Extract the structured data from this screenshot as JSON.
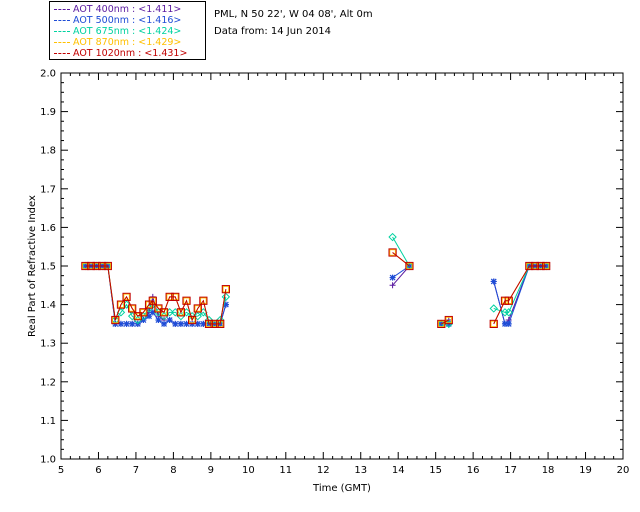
{
  "header": {
    "site": "PML, N 50 22', W 04 08', Alt 0m",
    "date_line": "Data from: 14 Jun 2014"
  },
  "legend": [
    {
      "label": "AOT  400nm : <1.411>",
      "color": "#5a1aa0"
    },
    {
      "label": "AOT  500nm : <1.416>",
      "color": "#1e4cd6"
    },
    {
      "label": "AOT  675nm : <1.424>",
      "color": "#00d2a0"
    },
    {
      "label": "AOT  870nm : <1.429>",
      "color": "#ffc000"
    },
    {
      "label": "AOT 1020nm : <1.431>",
      "color": "#c00000"
    }
  ],
  "chart_data": {
    "type": "scatter",
    "title": "",
    "xlabel": "Time (GMT)",
    "ylabel": "Real Part of Refractive Index",
    "xlim": [
      5,
      20
    ],
    "ylim": [
      1.0,
      2.0
    ],
    "xticks": [
      5,
      6,
      7,
      8,
      9,
      10,
      11,
      12,
      13,
      14,
      15,
      16,
      17,
      18,
      19,
      20
    ],
    "yticks": [
      1.0,
      1.1,
      1.2,
      1.3,
      1.4,
      1.5,
      1.6,
      1.7,
      1.8,
      1.9,
      2.0
    ],
    "series": [
      {
        "name": "AOT  400nm : <1.411>",
        "color": "#5a1aa0",
        "marker": "plus",
        "points": [
          [
            5.65,
            1.5
          ],
          [
            5.8,
            1.5
          ],
          [
            5.95,
            1.5
          ],
          [
            6.1,
            1.5
          ],
          [
            6.25,
            1.5
          ],
          [
            6.45,
            1.35
          ],
          [
            6.6,
            1.35
          ],
          [
            6.75,
            1.35
          ],
          [
            6.9,
            1.35
          ],
          [
            7.05,
            1.35
          ],
          [
            7.2,
            1.36
          ],
          [
            7.35,
            1.38
          ],
          [
            7.45,
            1.42
          ],
          [
            7.6,
            1.37
          ],
          [
            7.75,
            1.36
          ],
          [
            7.9,
            1.36
          ],
          [
            8.05,
            1.35
          ],
          [
            8.2,
            1.35
          ],
          [
            8.35,
            1.35
          ],
          [
            8.5,
            1.35
          ],
          [
            8.65,
            1.35
          ],
          [
            8.8,
            1.35
          ],
          [
            8.95,
            1.35
          ],
          [
            9.1,
            1.35
          ],
          [
            9.25,
            1.35
          ],
          [
            9.4,
            1.4
          ],
          [
            13.85,
            1.45
          ],
          [
            14.3,
            1.5
          ],
          [
            15.15,
            1.35
          ],
          [
            15.35,
            1.36
          ],
          [
            16.55,
            1.46
          ],
          [
            16.85,
            1.35
          ],
          [
            16.95,
            1.36
          ],
          [
            17.5,
            1.5
          ],
          [
            17.65,
            1.5
          ],
          [
            17.8,
            1.5
          ],
          [
            17.95,
            1.5
          ]
        ]
      },
      {
        "name": "AOT  500nm : <1.416>",
        "color": "#1e4cd6",
        "marker": "star",
        "points": [
          [
            5.65,
            1.5
          ],
          [
            5.8,
            1.5
          ],
          [
            5.95,
            1.5
          ],
          [
            6.1,
            1.5
          ],
          [
            6.25,
            1.5
          ],
          [
            6.45,
            1.35
          ],
          [
            6.6,
            1.35
          ],
          [
            6.75,
            1.35
          ],
          [
            6.9,
            1.35
          ],
          [
            7.05,
            1.35
          ],
          [
            7.2,
            1.36
          ],
          [
            7.35,
            1.37
          ],
          [
            7.45,
            1.38
          ],
          [
            7.6,
            1.36
          ],
          [
            7.75,
            1.35
          ],
          [
            7.9,
            1.36
          ],
          [
            8.05,
            1.35
          ],
          [
            8.2,
            1.35
          ],
          [
            8.35,
            1.35
          ],
          [
            8.5,
            1.35
          ],
          [
            8.65,
            1.35
          ],
          [
            8.8,
            1.35
          ],
          [
            8.95,
            1.35
          ],
          [
            9.1,
            1.35
          ],
          [
            9.25,
            1.35
          ],
          [
            9.4,
            1.4
          ],
          [
            13.85,
            1.47
          ],
          [
            14.3,
            1.5
          ],
          [
            15.15,
            1.35
          ],
          [
            15.35,
            1.35
          ],
          [
            16.55,
            1.46
          ],
          [
            16.85,
            1.35
          ],
          [
            16.95,
            1.35
          ],
          [
            17.5,
            1.5
          ],
          [
            17.65,
            1.5
          ],
          [
            17.8,
            1.5
          ],
          [
            17.95,
            1.5
          ]
        ]
      },
      {
        "name": "AOT  675nm : <1.424>",
        "color": "#00d2a0",
        "marker": "diamond",
        "points": [
          [
            5.65,
            1.5
          ],
          [
            5.8,
            1.5
          ],
          [
            5.95,
            1.5
          ],
          [
            6.1,
            1.5
          ],
          [
            6.25,
            1.5
          ],
          [
            6.45,
            1.36
          ],
          [
            6.6,
            1.38
          ],
          [
            6.75,
            1.4
          ],
          [
            6.9,
            1.37
          ],
          [
            7.05,
            1.36
          ],
          [
            7.2,
            1.37
          ],
          [
            7.35,
            1.39
          ],
          [
            7.45,
            1.4
          ],
          [
            7.6,
            1.38
          ],
          [
            7.75,
            1.37
          ],
          [
            7.9,
            1.38
          ],
          [
            8.05,
            1.38
          ],
          [
            8.2,
            1.37
          ],
          [
            8.35,
            1.38
          ],
          [
            8.5,
            1.37
          ],
          [
            8.65,
            1.37
          ],
          [
            8.8,
            1.38
          ],
          [
            8.95,
            1.36
          ],
          [
            9.1,
            1.35
          ],
          [
            9.25,
            1.36
          ],
          [
            9.4,
            1.42
          ],
          [
            13.85,
            1.575
          ],
          [
            14.3,
            1.5
          ],
          [
            15.15,
            1.35
          ],
          [
            15.35,
            1.35
          ],
          [
            16.55,
            1.39
          ],
          [
            16.85,
            1.38
          ],
          [
            16.95,
            1.38
          ],
          [
            17.5,
            1.5
          ],
          [
            17.65,
            1.5
          ],
          [
            17.8,
            1.5
          ],
          [
            17.95,
            1.5
          ]
        ]
      },
      {
        "name": "AOT  870nm : <1.429>",
        "color": "#ffc000",
        "marker": "square",
        "points": [
          [
            5.65,
            1.5
          ],
          [
            5.8,
            1.5
          ],
          [
            5.95,
            1.5
          ],
          [
            6.1,
            1.5
          ],
          [
            6.25,
            1.5
          ],
          [
            6.45,
            1.36
          ],
          [
            6.6,
            1.4
          ],
          [
            6.75,
            1.42
          ],
          [
            6.9,
            1.39
          ],
          [
            7.05,
            1.37
          ],
          [
            7.2,
            1.38
          ],
          [
            7.35,
            1.4
          ],
          [
            7.45,
            1.41
          ],
          [
            7.6,
            1.39
          ],
          [
            7.75,
            1.38
          ],
          [
            7.9,
            1.42
          ],
          [
            8.05,
            1.42
          ],
          [
            8.2,
            1.38
          ],
          [
            8.35,
            1.41
          ],
          [
            8.5,
            1.36
          ],
          [
            8.65,
            1.39
          ],
          [
            8.8,
            1.41
          ],
          [
            8.95,
            1.35
          ],
          [
            9.1,
            1.35
          ],
          [
            9.25,
            1.35
          ],
          [
            9.4,
            1.44
          ],
          [
            13.85,
            1.535
          ],
          [
            14.3,
            1.5
          ],
          [
            15.15,
            1.35
          ],
          [
            15.35,
            1.36
          ],
          [
            16.55,
            1.35
          ],
          [
            16.85,
            1.41
          ],
          [
            16.95,
            1.41
          ],
          [
            17.5,
            1.5
          ],
          [
            17.65,
            1.5
          ],
          [
            17.8,
            1.5
          ],
          [
            17.95,
            1.5
          ]
        ]
      },
      {
        "name": "AOT 1020nm : <1.431>",
        "color": "#c00000",
        "marker": "square",
        "points": [
          [
            5.65,
            1.5
          ],
          [
            5.8,
            1.5
          ],
          [
            5.95,
            1.5
          ],
          [
            6.1,
            1.5
          ],
          [
            6.25,
            1.5
          ],
          [
            6.45,
            1.36
          ],
          [
            6.6,
            1.4
          ],
          [
            6.75,
            1.42
          ],
          [
            6.9,
            1.39
          ],
          [
            7.05,
            1.37
          ],
          [
            7.2,
            1.38
          ],
          [
            7.35,
            1.4
          ],
          [
            7.45,
            1.41
          ],
          [
            7.6,
            1.39
          ],
          [
            7.75,
            1.38
          ],
          [
            7.9,
            1.42
          ],
          [
            8.05,
            1.42
          ],
          [
            8.2,
            1.38
          ],
          [
            8.35,
            1.41
          ],
          [
            8.5,
            1.36
          ],
          [
            8.65,
            1.39
          ],
          [
            8.8,
            1.41
          ],
          [
            8.95,
            1.35
          ],
          [
            9.1,
            1.35
          ],
          [
            9.25,
            1.35
          ],
          [
            9.4,
            1.44
          ],
          [
            13.85,
            1.535
          ],
          [
            14.3,
            1.5
          ],
          [
            15.15,
            1.35
          ],
          [
            15.35,
            1.36
          ],
          [
            16.55,
            1.35
          ],
          [
            16.85,
            1.41
          ],
          [
            16.95,
            1.41
          ],
          [
            17.5,
            1.5
          ],
          [
            17.65,
            1.5
          ],
          [
            17.8,
            1.5
          ],
          [
            17.95,
            1.5
          ]
        ]
      }
    ]
  }
}
